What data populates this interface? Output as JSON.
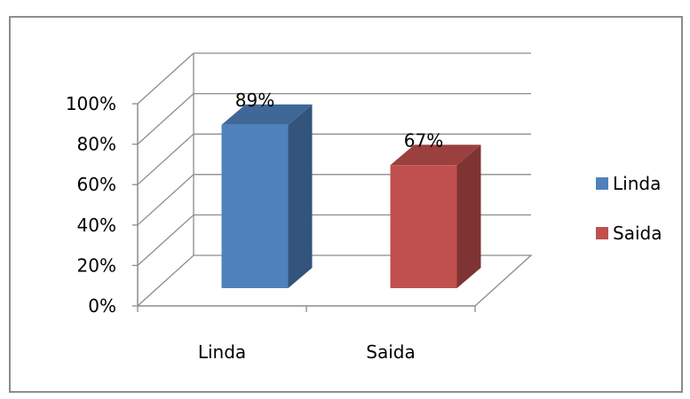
{
  "chart_data": {
    "type": "bar",
    "style": "3d-column",
    "categories": [
      "Linda",
      "Saida"
    ],
    "values": [
      89,
      67
    ],
    "data_labels": [
      "89%",
      "67%"
    ],
    "colors": [
      "#4f81bd",
      "#c0504d"
    ],
    "ylim": [
      0,
      100
    ],
    "y_ticks": [
      "0%",
      "20%",
      "40%",
      "60%",
      "80%",
      "100%"
    ],
    "grid": true,
    "legend_position": "right",
    "legend": [
      {
        "label": "Linda",
        "color": "#4f81bd"
      },
      {
        "label": "Saida",
        "color": "#c0504d"
      }
    ],
    "title": "",
    "xlabel": "",
    "ylabel": ""
  }
}
